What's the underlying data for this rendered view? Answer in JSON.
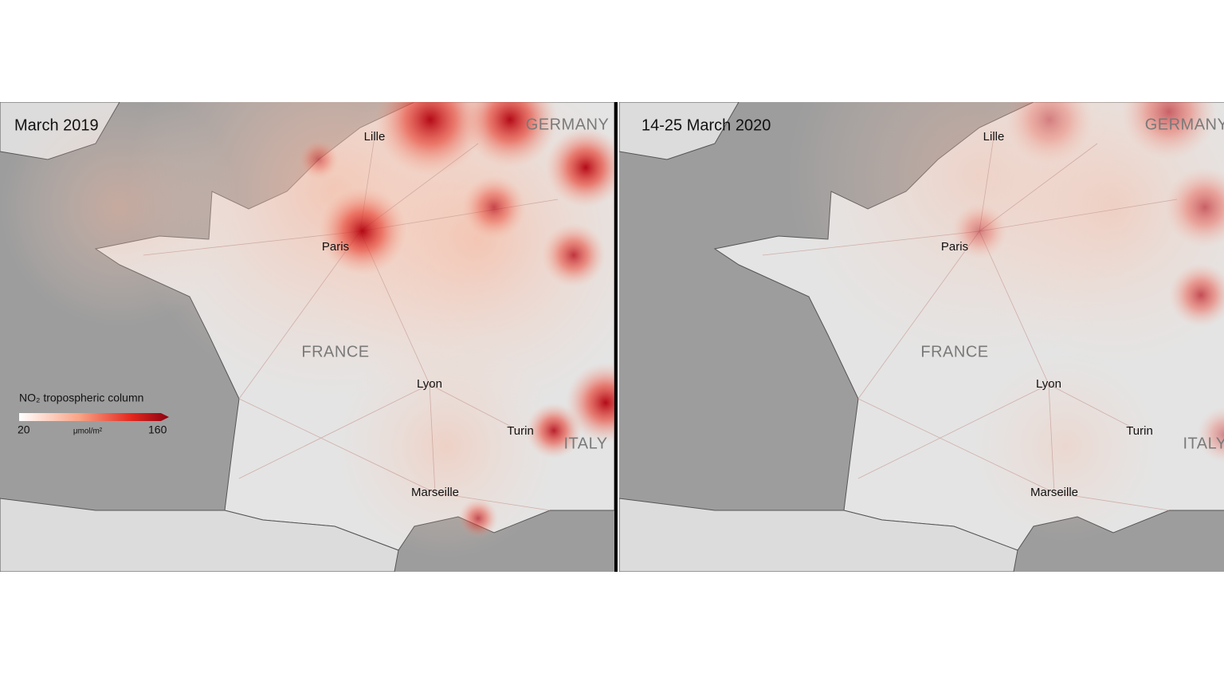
{
  "panels": [
    {
      "title": "March 2019",
      "labels": {
        "lille": "Lille",
        "paris": "Paris",
        "france": "FRANCE",
        "lyon": "Lyon",
        "turin": "Turin",
        "marseille": "Marseille",
        "germany": "GERMANY",
        "italy": "ITALY"
      }
    },
    {
      "title": "14-25 March 2020",
      "labels": {
        "lille": "Lille",
        "paris": "Paris",
        "france": "FRANCE",
        "lyon": "Lyon",
        "turin": "Turin",
        "marseille": "Marseille",
        "germany": "GERMANY",
        "italy": "ITALY"
      }
    }
  ],
  "legend": {
    "title": "NO₂ tropospheric column",
    "min": "20",
    "max": "160",
    "unit": "μmol/m²"
  }
}
